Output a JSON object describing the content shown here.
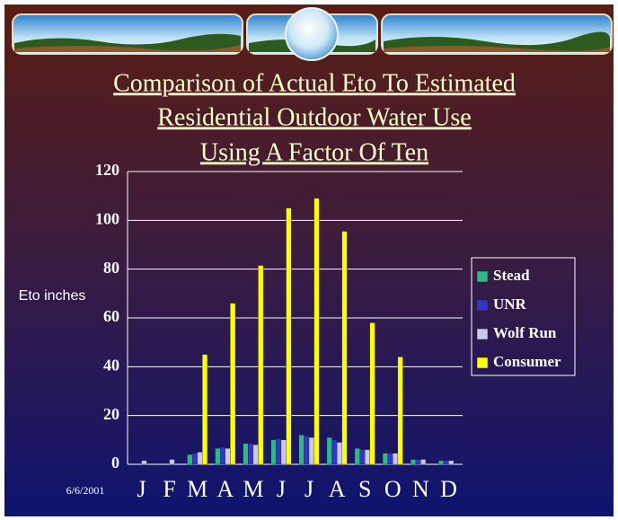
{
  "chart_data": {
    "type": "bar",
    "title": [
      "Comparison of Actual Eto  To Estimated",
      "Residential Outdoor Water Use",
      "Using A Factor Of Ten"
    ],
    "ylabel": "Eto inches",
    "date": "6/6/2001",
    "categories": [
      "J",
      "F",
      "M",
      "A",
      "M",
      "J",
      "J",
      "A",
      "S",
      "O",
      "N",
      "D"
    ],
    "series": [
      {
        "name": "Stead",
        "color": "#2fb88c",
        "values": [
          0,
          0,
          4,
          6.5,
          8.5,
          10,
          12,
          11,
          6.5,
          4.5,
          2,
          1.5
        ]
      },
      {
        "name": "UNR",
        "color": "#3535c8",
        "values": [
          0,
          0,
          4.5,
          7,
          8.5,
          10.5,
          11.5,
          10,
          6,
          4.5,
          2,
          1.5
        ]
      },
      {
        "name": "Wolf Run",
        "color": "#c8c8f0",
        "values": [
          1.5,
          2,
          5,
          6.5,
          8,
          10,
          11,
          9,
          6,
          4.5,
          2,
          1.5
        ]
      },
      {
        "name": "Consumer",
        "color": "#ffff00",
        "values": [
          0,
          0,
          45,
          66,
          81.5,
          105,
          109,
          95.5,
          58,
          44,
          0,
          0
        ]
      }
    ],
    "ylim": [
      0,
      120
    ],
    "yticks": [
      0,
      20,
      40,
      60,
      80,
      100,
      120
    ],
    "grid": true,
    "legend": "right"
  }
}
